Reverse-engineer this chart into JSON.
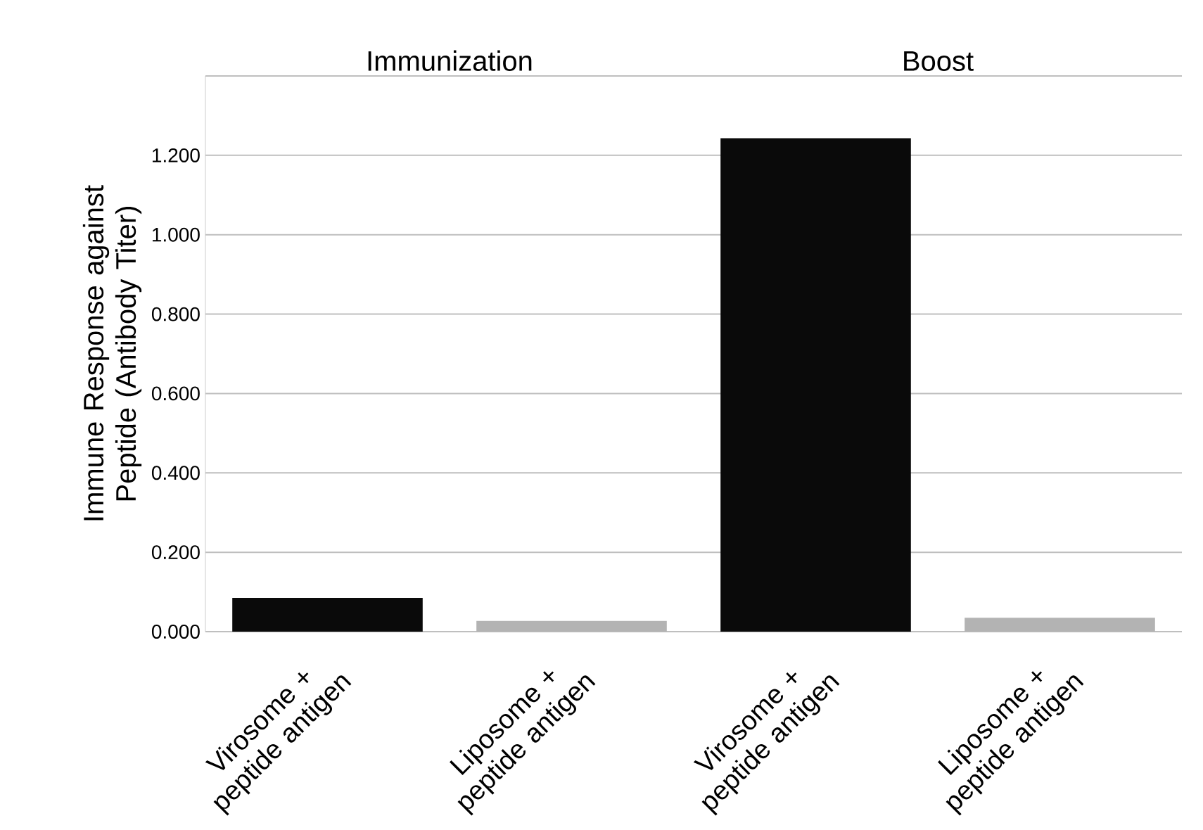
{
  "chart_data": {
    "type": "bar",
    "ylabel": "Immune Response against Peptide (Antibody Titer)",
    "categories": [
      "Virosome + peptide antigen",
      "Liposome + peptide antigen",
      "Virosome + peptide antigen",
      "Liposome + peptide antigen"
    ],
    "values": [
      0.085,
      0.027,
      1.243,
      0.035
    ],
    "colors": [
      "#0a0a0a",
      "#b3b3b3",
      "#0a0a0a",
      "#b3b3b3"
    ],
    "ylim": [
      0,
      1.4
    ],
    "yticks": [
      {
        "value": 0,
        "label": "0.000"
      },
      {
        "value": 0.2,
        "label": "0.200"
      },
      {
        "value": 0.4,
        "label": "0.400"
      },
      {
        "value": 0.6,
        "label": "0.600"
      },
      {
        "value": 0.8,
        "label": "0.800"
      },
      {
        "value": 1.0,
        "label": "1.000"
      },
      {
        "value": 1.2,
        "label": "1.200"
      },
      {
        "value": 1.4,
        "label": null
      }
    ],
    "grid": "y",
    "annotations": [
      "Immunization",
      "Boost"
    ]
  }
}
